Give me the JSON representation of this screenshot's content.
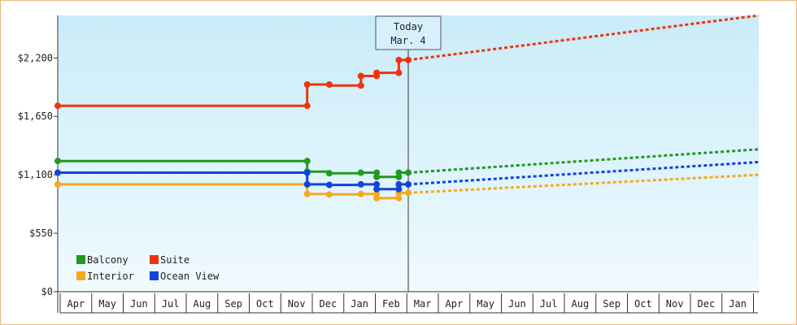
{
  "chart_data": {
    "type": "line",
    "title": "",
    "xlabel": "",
    "ylabel": "",
    "ylim": [
      0,
      2600
    ],
    "y_ticks": [
      0,
      550,
      1100,
      1650,
      2200
    ],
    "y_tick_labels": [
      "$0",
      "$550",
      "$1,100",
      "$1,650",
      "$2,200"
    ],
    "x_tick_labels": [
      "Apr",
      "May",
      "Jun",
      "Jul",
      "Aug",
      "Sep",
      "Oct",
      "Nov",
      "Dec",
      "Jan",
      "Feb",
      "Mar",
      "Apr",
      "May",
      "Jun",
      "Jul",
      "Aug",
      "Sep",
      "Oct",
      "Nov",
      "Dec",
      "Jan"
    ],
    "x_unit": "months from start of Apr",
    "grid": false,
    "legend_position": "bottom-left",
    "today_marker": {
      "line1": "Today",
      "line2": "Mar. 4",
      "x": 11.1
    },
    "series": [
      {
        "name": "Balcony",
        "color": "#229922",
        "history": [
          [
            0,
            1230
          ],
          [
            7.9,
            1230
          ],
          [
            7.9,
            1130
          ],
          [
            8.6,
            1130
          ],
          [
            8.6,
            1115
          ],
          [
            9.6,
            1115
          ],
          [
            9.6,
            1120
          ],
          [
            10.1,
            1120
          ],
          [
            10.1,
            1080
          ],
          [
            10.8,
            1080
          ],
          [
            10.8,
            1120
          ],
          [
            11.1,
            1120
          ]
        ],
        "markers": [
          [
            0,
            1230
          ],
          [
            7.9,
            1230
          ],
          [
            7.9,
            1130
          ],
          [
            8.6,
            1115
          ],
          [
            9.6,
            1120
          ],
          [
            10.1,
            1120
          ],
          [
            10.1,
            1080
          ],
          [
            10.8,
            1080
          ],
          [
            10.8,
            1120
          ],
          [
            11.1,
            1120
          ]
        ],
        "forecast": [
          [
            11.1,
            1120
          ],
          [
            22.2,
            1340
          ]
        ]
      },
      {
        "name": "Suite",
        "color": "#ee3311",
        "history": [
          [
            0,
            1750
          ],
          [
            7.9,
            1750
          ],
          [
            7.9,
            1950
          ],
          [
            8.6,
            1950
          ],
          [
            8.6,
            1940
          ],
          [
            9.6,
            1940
          ],
          [
            9.6,
            2030
          ],
          [
            10.1,
            2030
          ],
          [
            10.1,
            2060
          ],
          [
            10.8,
            2060
          ],
          [
            10.8,
            2180
          ],
          [
            11.1,
            2180
          ]
        ],
        "markers": [
          [
            0,
            1750
          ],
          [
            7.9,
            1750
          ],
          [
            7.9,
            1950
          ],
          [
            8.6,
            1950
          ],
          [
            9.6,
            1940
          ],
          [
            9.6,
            2030
          ],
          [
            10.1,
            2030
          ],
          [
            10.1,
            2060
          ],
          [
            10.8,
            2060
          ],
          [
            10.8,
            2180
          ],
          [
            11.1,
            2180
          ]
        ],
        "forecast": [
          [
            11.1,
            2180
          ],
          [
            22.2,
            2600
          ]
        ]
      },
      {
        "name": "Interior",
        "color": "#f5a91c",
        "history": [
          [
            0,
            1010
          ],
          [
            7.9,
            1010
          ],
          [
            7.9,
            920
          ],
          [
            8.6,
            920
          ],
          [
            8.6,
            915
          ],
          [
            9.6,
            915
          ],
          [
            9.6,
            920
          ],
          [
            10.1,
            920
          ],
          [
            10.1,
            880
          ],
          [
            10.8,
            880
          ],
          [
            10.8,
            930
          ],
          [
            11.1,
            930
          ]
        ],
        "markers": [
          [
            0,
            1010
          ],
          [
            7.9,
            1010
          ],
          [
            7.9,
            920
          ],
          [
            8.6,
            915
          ],
          [
            9.6,
            920
          ],
          [
            10.1,
            920
          ],
          [
            10.1,
            880
          ],
          [
            10.8,
            880
          ],
          [
            10.8,
            930
          ],
          [
            11.1,
            930
          ]
        ],
        "forecast": [
          [
            11.1,
            930
          ],
          [
            22.2,
            1100
          ]
        ]
      },
      {
        "name": "Ocean View",
        "color": "#1144dd",
        "history": [
          [
            0,
            1120
          ],
          [
            7.9,
            1120
          ],
          [
            7.9,
            1010
          ],
          [
            8.6,
            1010
          ],
          [
            8.6,
            1005
          ],
          [
            9.6,
            1005
          ],
          [
            9.6,
            1010
          ],
          [
            10.1,
            1010
          ],
          [
            10.1,
            965
          ],
          [
            10.8,
            965
          ],
          [
            10.8,
            1010
          ],
          [
            11.1,
            1010
          ]
        ],
        "markers": [
          [
            0,
            1120
          ],
          [
            7.9,
            1120
          ],
          [
            7.9,
            1010
          ],
          [
            8.6,
            1005
          ],
          [
            9.6,
            1010
          ],
          [
            10.1,
            1010
          ],
          [
            10.1,
            965
          ],
          [
            10.8,
            965
          ],
          [
            10.8,
            1010
          ],
          [
            11.1,
            1010
          ]
        ],
        "forecast": [
          [
            11.1,
            1010
          ],
          [
            22.2,
            1220
          ]
        ]
      }
    ]
  }
}
